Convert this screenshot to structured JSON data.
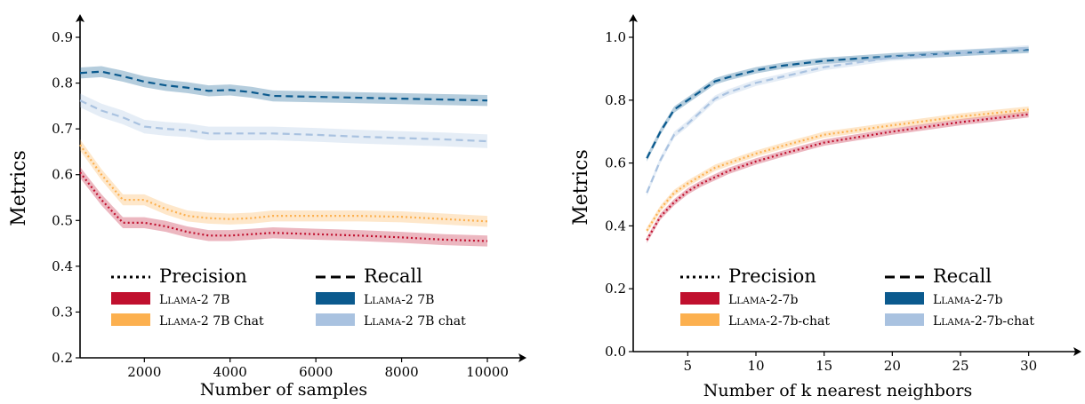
{
  "colors": {
    "llama_base_precision": "#c0102e",
    "llama_chat_precision": "#fcb04f",
    "llama_base_recall": "#0b5a8e",
    "llama_chat_recall": "#a9c2e0"
  },
  "chart_data": [
    {
      "type": "line",
      "xlabel": "Number of samples",
      "ylabel": "Metrics",
      "xlim": [
        500,
        10000
      ],
      "ylim": [
        0.2,
        0.9
      ],
      "xticks": [
        2000,
        4000,
        6000,
        8000,
        10000
      ],
      "yticks": [
        0.2,
        0.3,
        0.4,
        0.5,
        0.6,
        0.7,
        0.8,
        0.9
      ],
      "legend_position": "lower-center",
      "legend": {
        "style_precision": "Precision",
        "style_recall": "Recall",
        "entries_precision": [
          "Llama-2 7B",
          "Llama-2 7B Chat"
        ],
        "entries_recall": [
          "Llama-2 7B",
          "Llama-2 7B chat"
        ]
      },
      "series": [
        {
          "metric": "precision",
          "model": "Llama-2 7B",
          "color": "#c0102e",
          "style": "dotted",
          "x": [
            500,
            1000,
            1500,
            2000,
            2500,
            3000,
            3500,
            4000,
            4500,
            5000,
            6000,
            7000,
            8000,
            9000,
            10000
          ],
          "y": [
            0.605,
            0.545,
            0.495,
            0.495,
            0.487,
            0.475,
            0.467,
            0.467,
            0.47,
            0.473,
            0.47,
            0.467,
            0.463,
            0.458,
            0.455
          ],
          "band": 0.012
        },
        {
          "metric": "precision",
          "model": "Llama-2 7B Chat",
          "color": "#fcb04f",
          "style": "dotted",
          "x": [
            500,
            1000,
            1500,
            2000,
            2500,
            3000,
            3500,
            4000,
            4500,
            5000,
            6000,
            7000,
            8000,
            9000,
            10000
          ],
          "y": [
            0.665,
            0.6,
            0.545,
            0.545,
            0.525,
            0.51,
            0.505,
            0.503,
            0.505,
            0.51,
            0.51,
            0.51,
            0.508,
            0.503,
            0.498
          ],
          "band": 0.012
        },
        {
          "metric": "recall",
          "model": "Llama-2 7B",
          "color": "#0b5a8e",
          "style": "dashed",
          "x": [
            500,
            1000,
            1500,
            2000,
            2500,
            3000,
            3500,
            4000,
            4500,
            5000,
            6000,
            7000,
            8000,
            9000,
            10000
          ],
          "y": [
            0.822,
            0.825,
            0.815,
            0.803,
            0.795,
            0.79,
            0.783,
            0.785,
            0.78,
            0.772,
            0.77,
            0.768,
            0.766,
            0.764,
            0.762
          ],
          "band": 0.012
        },
        {
          "metric": "recall",
          "model": "Llama-2 7B chat",
          "color": "#a9c2e0",
          "style": "dashed",
          "x": [
            500,
            1000,
            1500,
            2000,
            2500,
            3000,
            3500,
            4000,
            4500,
            5000,
            6000,
            7000,
            8000,
            9000,
            10000
          ],
          "y": [
            0.762,
            0.74,
            0.725,
            0.705,
            0.7,
            0.697,
            0.69,
            0.69,
            0.69,
            0.69,
            0.687,
            0.683,
            0.68,
            0.677,
            0.673
          ],
          "band": 0.015
        }
      ]
    },
    {
      "type": "line",
      "xlabel": "Number of k nearest neighbors",
      "ylabel": "Metrics",
      "xlim": [
        1,
        31
      ],
      "ylim": [
        0.0,
        1.0
      ],
      "xticks": [
        5,
        10,
        15,
        20,
        25,
        30
      ],
      "yticks": [
        0.0,
        0.2,
        0.4,
        0.6,
        0.8,
        1.0
      ],
      "legend_position": "lower-center",
      "legend": {
        "style_precision": "Precision",
        "style_recall": "Recall",
        "entries_precision": [
          "Llama-2-7b",
          "Llama-2-7b-chat"
        ],
        "entries_recall": [
          "Llama-2-7b",
          "Llama-2-7b-chat"
        ]
      },
      "series": [
        {
          "metric": "precision",
          "model": "Llama-2-7b",
          "color": "#c0102e",
          "style": "dotted",
          "x": [
            2,
            3,
            4,
            5,
            6,
            7,
            8,
            10,
            12,
            15,
            20,
            25,
            30
          ],
          "y": [
            0.355,
            0.43,
            0.475,
            0.51,
            0.535,
            0.555,
            0.575,
            0.605,
            0.63,
            0.665,
            0.7,
            0.73,
            0.755
          ],
          "band": 0.01
        },
        {
          "metric": "precision",
          "model": "Llama-2-7b-chat",
          "color": "#fcb04f",
          "style": "dotted",
          "x": [
            2,
            3,
            4,
            5,
            6,
            7,
            8,
            10,
            12,
            15,
            20,
            25,
            30
          ],
          "y": [
            0.385,
            0.455,
            0.505,
            0.535,
            0.56,
            0.585,
            0.6,
            0.63,
            0.655,
            0.69,
            0.72,
            0.748,
            0.77
          ],
          "band": 0.01
        },
        {
          "metric": "recall",
          "model": "Llama-2-7b",
          "color": "#0b5a8e",
          "style": "dashed",
          "x": [
            2,
            3,
            4,
            5,
            6,
            7,
            8,
            10,
            12,
            15,
            20,
            25,
            30
          ],
          "y": [
            0.615,
            0.7,
            0.77,
            0.8,
            0.83,
            0.86,
            0.873,
            0.895,
            0.91,
            0.925,
            0.94,
            0.95,
            0.96
          ],
          "band": 0.01
        },
        {
          "metric": "recall",
          "model": "Llama-2-7b-chat",
          "color": "#a9c2e0",
          "style": "dashed",
          "x": [
            2,
            3,
            4,
            5,
            6,
            7,
            8,
            10,
            12,
            15,
            20,
            25,
            30
          ],
          "y": [
            0.505,
            0.61,
            0.69,
            0.725,
            0.765,
            0.805,
            0.825,
            0.855,
            0.875,
            0.905,
            0.935,
            0.95,
            0.965
          ],
          "band": 0.01
        }
      ]
    }
  ]
}
